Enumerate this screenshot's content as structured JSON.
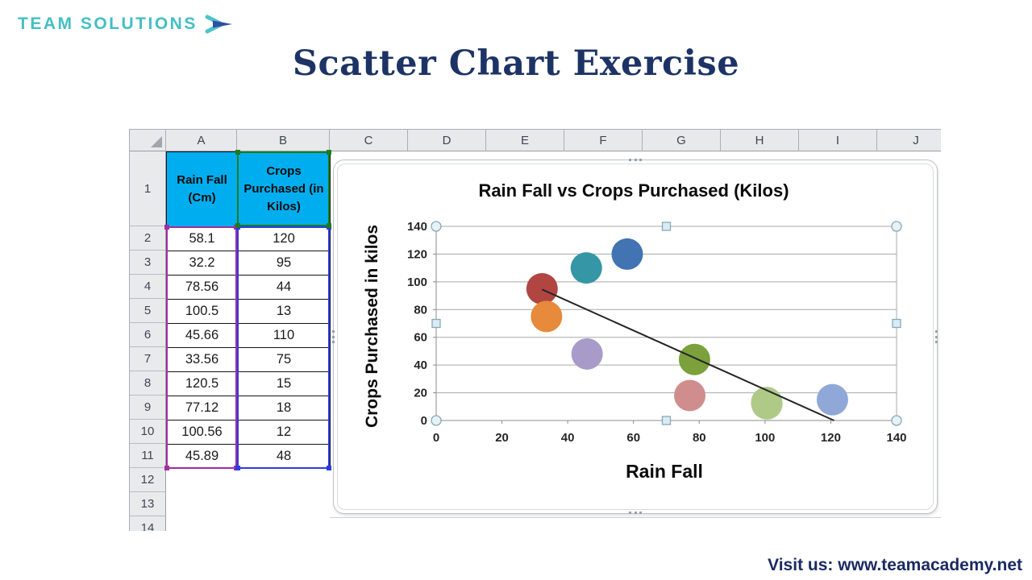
{
  "brand": {
    "logo_text": "TEAM SOLUTIONS",
    "logo_color": "#44BFC4",
    "arrow_chevron_color": "#4FC3CA",
    "arrow_head_color": "#2E4FA3"
  },
  "page": {
    "title": "Scatter Chart Exercise",
    "title_color": "#1D3366",
    "footer_text": "Visit us: www.teamacademy.net",
    "footer_color": "#1B2A63"
  },
  "spreadsheet": {
    "column_headers": [
      "A",
      "B",
      "C",
      "D",
      "E",
      "F",
      "G",
      "H",
      "I",
      "J"
    ],
    "row_numbers": [
      "1",
      "2",
      "3",
      "4",
      "5",
      "6",
      "7",
      "8",
      "9",
      "10",
      "11",
      "12",
      "13",
      "14"
    ],
    "table": {
      "header_fill": "#00AEEF",
      "columns": [
        {
          "header": "Rain Fall (Cm)",
          "values": [
            "58.1",
            "32.2",
            "78.56",
            "100.5",
            "45.66",
            "33.56",
            "120.5",
            "77.12",
            "100.56",
            "45.89"
          ]
        },
        {
          "header": "Crops Purchased (in Kilos)",
          "values": [
            "120",
            "95",
            "44",
            "13",
            "110",
            "75",
            "15",
            "18",
            "12",
            "48"
          ]
        }
      ],
      "selection": {
        "x_range_color": "#A22DA2",
        "y_range_color": "#2F3BE0",
        "name_range_color": "#1E7B1E"
      }
    }
  },
  "chart_data": {
    "type": "scatter",
    "title": "Rain Fall vs Crops Purchased (Kilos)",
    "xlabel": "Rain Fall",
    "ylabel": "Crops Purchased in kilos",
    "xlim": [
      0,
      140
    ],
    "ylim": [
      0,
      140
    ],
    "xticks": [
      0,
      20,
      40,
      60,
      80,
      100,
      120,
      140
    ],
    "yticks": [
      0,
      20,
      40,
      60,
      80,
      100,
      120,
      140
    ],
    "grid": "horizontal",
    "legend": "none",
    "points": [
      {
        "x": 58.1,
        "y": 120,
        "color": "#4273B3"
      },
      {
        "x": 32.2,
        "y": 95,
        "color": "#B04542"
      },
      {
        "x": 78.56,
        "y": 44,
        "color": "#7BA03C"
      },
      {
        "x": 100.5,
        "y": 13,
        "color": "#AFCA87"
      },
      {
        "x": 45.66,
        "y": 110,
        "color": "#3596A6"
      },
      {
        "x": 33.56,
        "y": 75,
        "color": "#E78A3B"
      },
      {
        "x": 120.5,
        "y": 15,
        "color": "#90A8D8"
      },
      {
        "x": 77.12,
        "y": 18,
        "color": "#CF8E8D"
      },
      {
        "x": 100.56,
        "y": 12,
        "color": "#AFCA87"
      },
      {
        "x": 45.89,
        "y": 48,
        "color": "#A99BC9"
      }
    ],
    "trendline": {
      "x1": 32.2,
      "y1": 94.5,
      "x2": 121,
      "y2": 0,
      "color": "#262626"
    }
  }
}
